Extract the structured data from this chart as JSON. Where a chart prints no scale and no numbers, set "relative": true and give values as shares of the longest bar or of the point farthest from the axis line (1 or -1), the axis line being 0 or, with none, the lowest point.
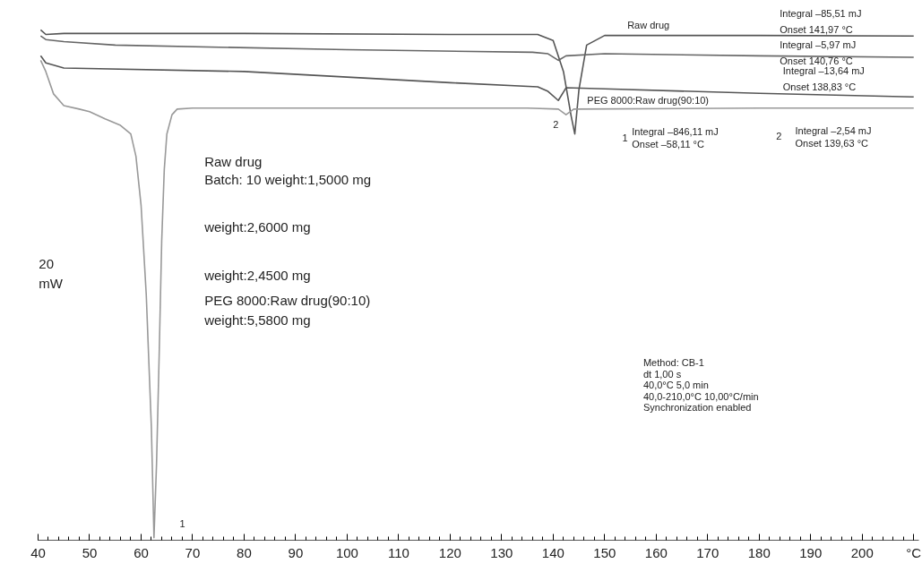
{
  "chart_data": {
    "type": "line",
    "relative": true,
    "grid": false,
    "marker": "none",
    "line_style": "solid",
    "xlim": [
      40,
      211
    ],
    "xticks": [
      40,
      50,
      60,
      70,
      80,
      90,
      100,
      110,
      120,
      130,
      140,
      150,
      160,
      170,
      180,
      190,
      200,
      {
        "value": 210,
        "label": "°C"
      }
    ],
    "series": [
      {
        "name": "Raw drug",
        "color": "#555555",
        "x": [
          40.5,
          41.5,
          45,
          80,
          120,
          137,
          140,
          142,
          143.5,
          144.2,
          145,
          146.5,
          150,
          180,
          210
        ],
        "values": [
          1.0,
          0.991,
          0.993,
          0.993,
          0.991,
          0.991,
          0.979,
          0.918,
          0.83,
          0.795,
          0.882,
          0.97,
          0.989,
          0.989,
          0.988
        ]
      },
      {
        "color": "#666666",
        "x": [
          40.5,
          41.5,
          45,
          55,
          100,
          136,
          139,
          141,
          142.5,
          150,
          180,
          210
        ],
        "values": [
          0.988,
          0.981,
          0.977,
          0.97,
          0.961,
          0.956,
          0.953,
          0.94,
          0.949,
          0.953,
          0.949,
          0.946
        ]
      },
      {
        "color": "#555555",
        "x": [
          40.5,
          41.5,
          45,
          80,
          120,
          137,
          139,
          141,
          142.5,
          150,
          180,
          210
        ],
        "values": [
          0.949,
          0.935,
          0.925,
          0.918,
          0.896,
          0.888,
          0.879,
          0.861,
          0.886,
          0.884,
          0.875,
          0.868
        ]
      },
      {
        "name": "PEG 8000:Raw drug(90:10)",
        "color": "#999999",
        "x": [
          40.5,
          41.5,
          43,
          45,
          48,
          50,
          53,
          56,
          58,
          59,
          60,
          61,
          62,
          62.5,
          63,
          63.5,
          64,
          64.5,
          65,
          66,
          67,
          70,
          100,
          135,
          141,
          142.5,
          144,
          180,
          210
        ],
        "values": [
          0.94,
          0.918,
          0.874,
          0.851,
          0.844,
          0.839,
          0.825,
          0.812,
          0.795,
          0.751,
          0.654,
          0.479,
          0.216,
          0.0,
          0.146,
          0.356,
          0.584,
          0.725,
          0.795,
          0.833,
          0.844,
          0.846,
          0.846,
          0.846,
          0.844,
          0.833,
          0.844,
          0.846,
          0.846
        ]
      }
    ],
    "annotations": [
      "Integral   –85,51 mJ",
      "Onset      141,97 °C",
      "Integral   –5,97 mJ",
      "Onset      140,76 °C",
      "Integral –13,64 mJ",
      "Onset     138,83 °C",
      "1",
      "Integral –846,11 mJ",
      "Onset    –58,11 °C",
      "2",
      "Integral –2,54 mJ",
      "Onset    139,63 °C",
      "2",
      "1",
      "Raw drug",
      "Batch: 10 weight:1,5000 mg",
      "weight:2,6000 mg",
      "weight:2,4500 mg",
      "PEG 8000:Raw drug(90:10)",
      "weight:5,5800 mg",
      "20\nmW",
      "Method: CB-1",
      "dt 1,00 s",
      "  40,0°C 5,0 min",
      "  40,0-210,0°C 10,00°C/min",
      "Synchronization enabled"
    ]
  }
}
